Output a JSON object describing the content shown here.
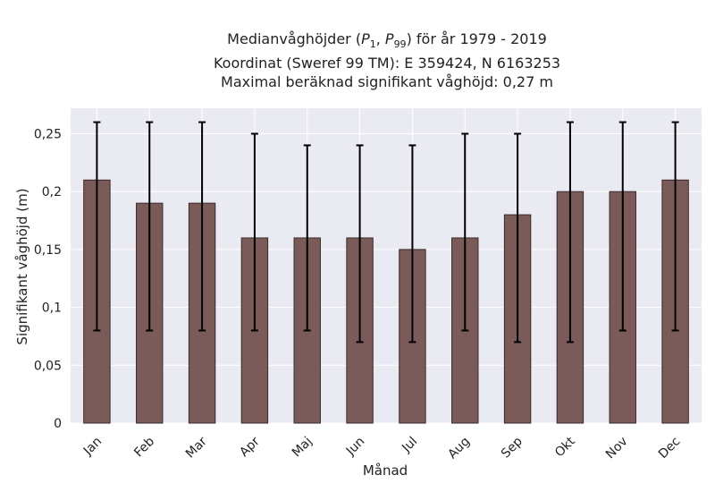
{
  "title_lines": [
    "Medianvåghöjder (P1, P99) för år 1979 - 2019",
    "Koordinat (Sweref 99 TM): E 359424, N 6163253",
    "Maximal beräknad signifikant våghöjd: 0,27 m"
  ],
  "chart_data": {
    "type": "bar",
    "title": "Medianvåghöjder (P1, P99) för år 1979 - 2019",
    "subtitle": "Koordinat (Sweref 99 TM): E 359424, N 6163253 | Maximal beräknad signifikant våghöjd: 0,27 m",
    "xlabel": "Månad",
    "ylabel": "Signifikant våghöjd (m)",
    "categories": [
      "Jan",
      "Feb",
      "Mar",
      "Apr",
      "Maj",
      "Jun",
      "Jul",
      "Aug",
      "Sep",
      "Okt",
      "Nov",
      "Dec"
    ],
    "values": [
      0.21,
      0.19,
      0.19,
      0.16,
      0.16,
      0.16,
      0.15,
      0.16,
      0.18,
      0.2,
      0.2,
      0.21
    ],
    "error_low": [
      0.08,
      0.08,
      0.08,
      0.08,
      0.08,
      0.07,
      0.07,
      0.08,
      0.07,
      0.07,
      0.08,
      0.08
    ],
    "error_high": [
      0.26,
      0.26,
      0.26,
      0.25,
      0.24,
      0.24,
      0.24,
      0.25,
      0.25,
      0.26,
      0.26,
      0.26
    ],
    "ylim": [
      0,
      0.272
    ],
    "yticks": [
      0,
      0.05,
      0.1,
      0.15,
      0.2,
      0.25
    ],
    "ytick_labels": [
      "0",
      "0,05",
      "0,1",
      "0,15",
      "0,2",
      "0,25"
    ],
    "grid": true,
    "colors": {
      "bar": "#7b5a5a",
      "bar_edge": "#3a2a2a",
      "plot_bg": "#eaeaf2",
      "grid": "#ffffff",
      "error": "#000000"
    }
  }
}
